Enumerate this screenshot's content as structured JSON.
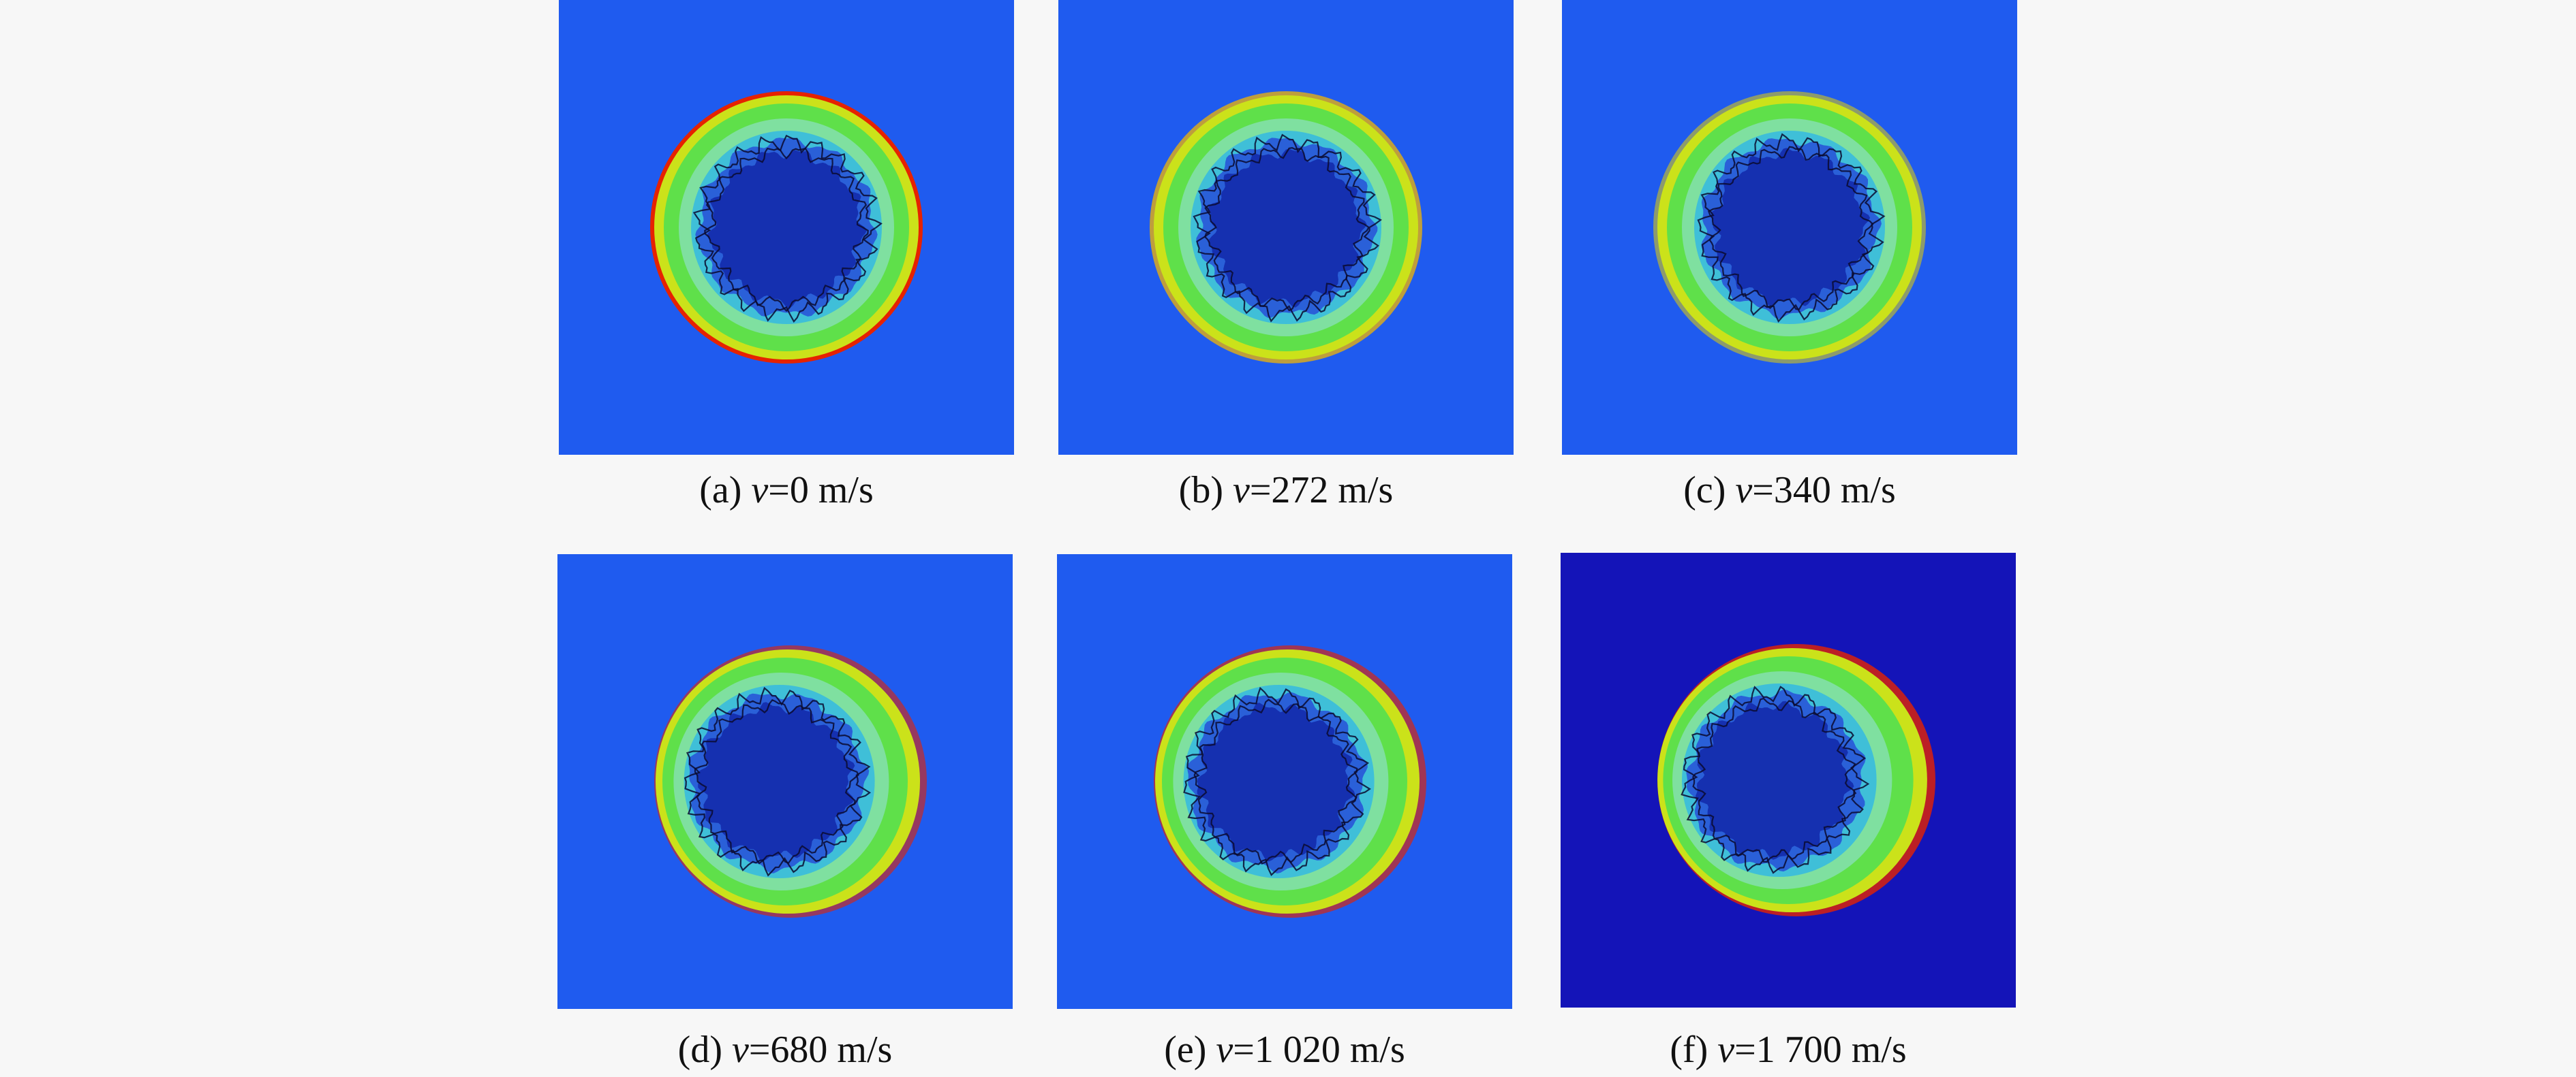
{
  "figure": {
    "panels": [
      {
        "id": "a",
        "label": "(a)",
        "variable": "v",
        "value_text": "=0 m/s",
        "background": "#1f5bef",
        "outer_rim_color": "#e62200",
        "rim_strength": 1.0,
        "asymmetry": "symmetric"
      },
      {
        "id": "b",
        "label": "(b)",
        "variable": "v",
        "value_text": "=272 m/s",
        "background": "#1f5bef",
        "outer_rim_color": "#f4b400",
        "rim_strength": 0.75,
        "asymmetry": "symmetric"
      },
      {
        "id": "c",
        "label": "(c)",
        "variable": "v",
        "value_text": "=340 m/s",
        "background": "#1f5bef",
        "outer_rim_color": "#e6d000",
        "rim_strength": 0.55,
        "asymmetry": "symmetric"
      },
      {
        "id": "d",
        "label": "(d)",
        "variable": "v",
        "value_text": "=680 m/s",
        "background": "#1f5bef",
        "outer_rim_color": "#e62200",
        "rim_strength": 0.6,
        "asymmetry": "right"
      },
      {
        "id": "e",
        "label": "(e)",
        "variable": "v",
        "value_text": "=1 020 m/s",
        "background": "#1f5bef",
        "outer_rim_color": "#e62200",
        "rim_strength": 0.65,
        "asymmetry": "right"
      },
      {
        "id": "f",
        "label": "(f)",
        "variable": "v",
        "value_text": "=1 700 m/s",
        "background": "#1414b8",
        "outer_rim_color": "#e62200",
        "rim_strength": 0.8,
        "asymmetry": "right-strong"
      }
    ]
  }
}
